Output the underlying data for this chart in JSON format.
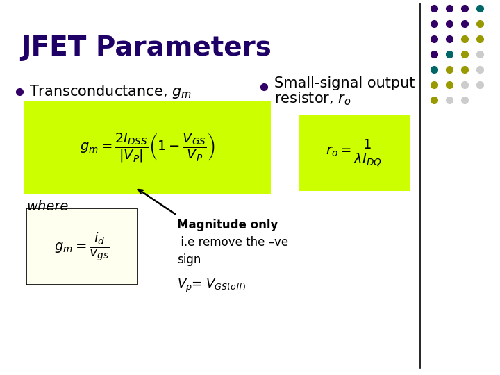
{
  "title": "JFET Parameters",
  "title_color": "#1E0066",
  "title_fontsize": 28,
  "bg_color": "#FFFFFF",
  "bullet_color": "#330066",
  "formula_bg": "#CCFF00",
  "formula2_bg": "#FFFFF0",
  "where_text": "where",
  "magnitude_text": "Magnitude only",
  "remove_text": " i.e remove the –ve\nsign",
  "vp_text": "$V_p$= $V_{GS(off)}$",
  "dot_grid": [
    [
      "#330066",
      "#330066",
      "#330066",
      "#006666"
    ],
    [
      "#330066",
      "#330066",
      "#330066",
      "#999900"
    ],
    [
      "#330066",
      "#330066",
      "#999900",
      "#999900"
    ],
    [
      "#330066",
      "#006666",
      "#999900",
      "#CCCCCC"
    ],
    [
      "#006666",
      "#999900",
      "#999900",
      "#CCCCCC"
    ],
    [
      "#999900",
      "#999900",
      "#CCCCCC",
      "#CCCCCC"
    ],
    [
      "#999900",
      "#CCCCCC",
      "#CCCCCC",
      ""
    ]
  ],
  "formula_gm_main": "$g_m = \\dfrac{2I_{DSS}}{|V_P|}\\left(1 - \\dfrac{V_{GS}}{V_P}\\right)$",
  "formula_ro": "$r_o = \\dfrac{1}{\\lambda I_{DQ}}$",
  "formula_gm_small": "$g_m = \\dfrac{i_d}{v_{gs}}$"
}
